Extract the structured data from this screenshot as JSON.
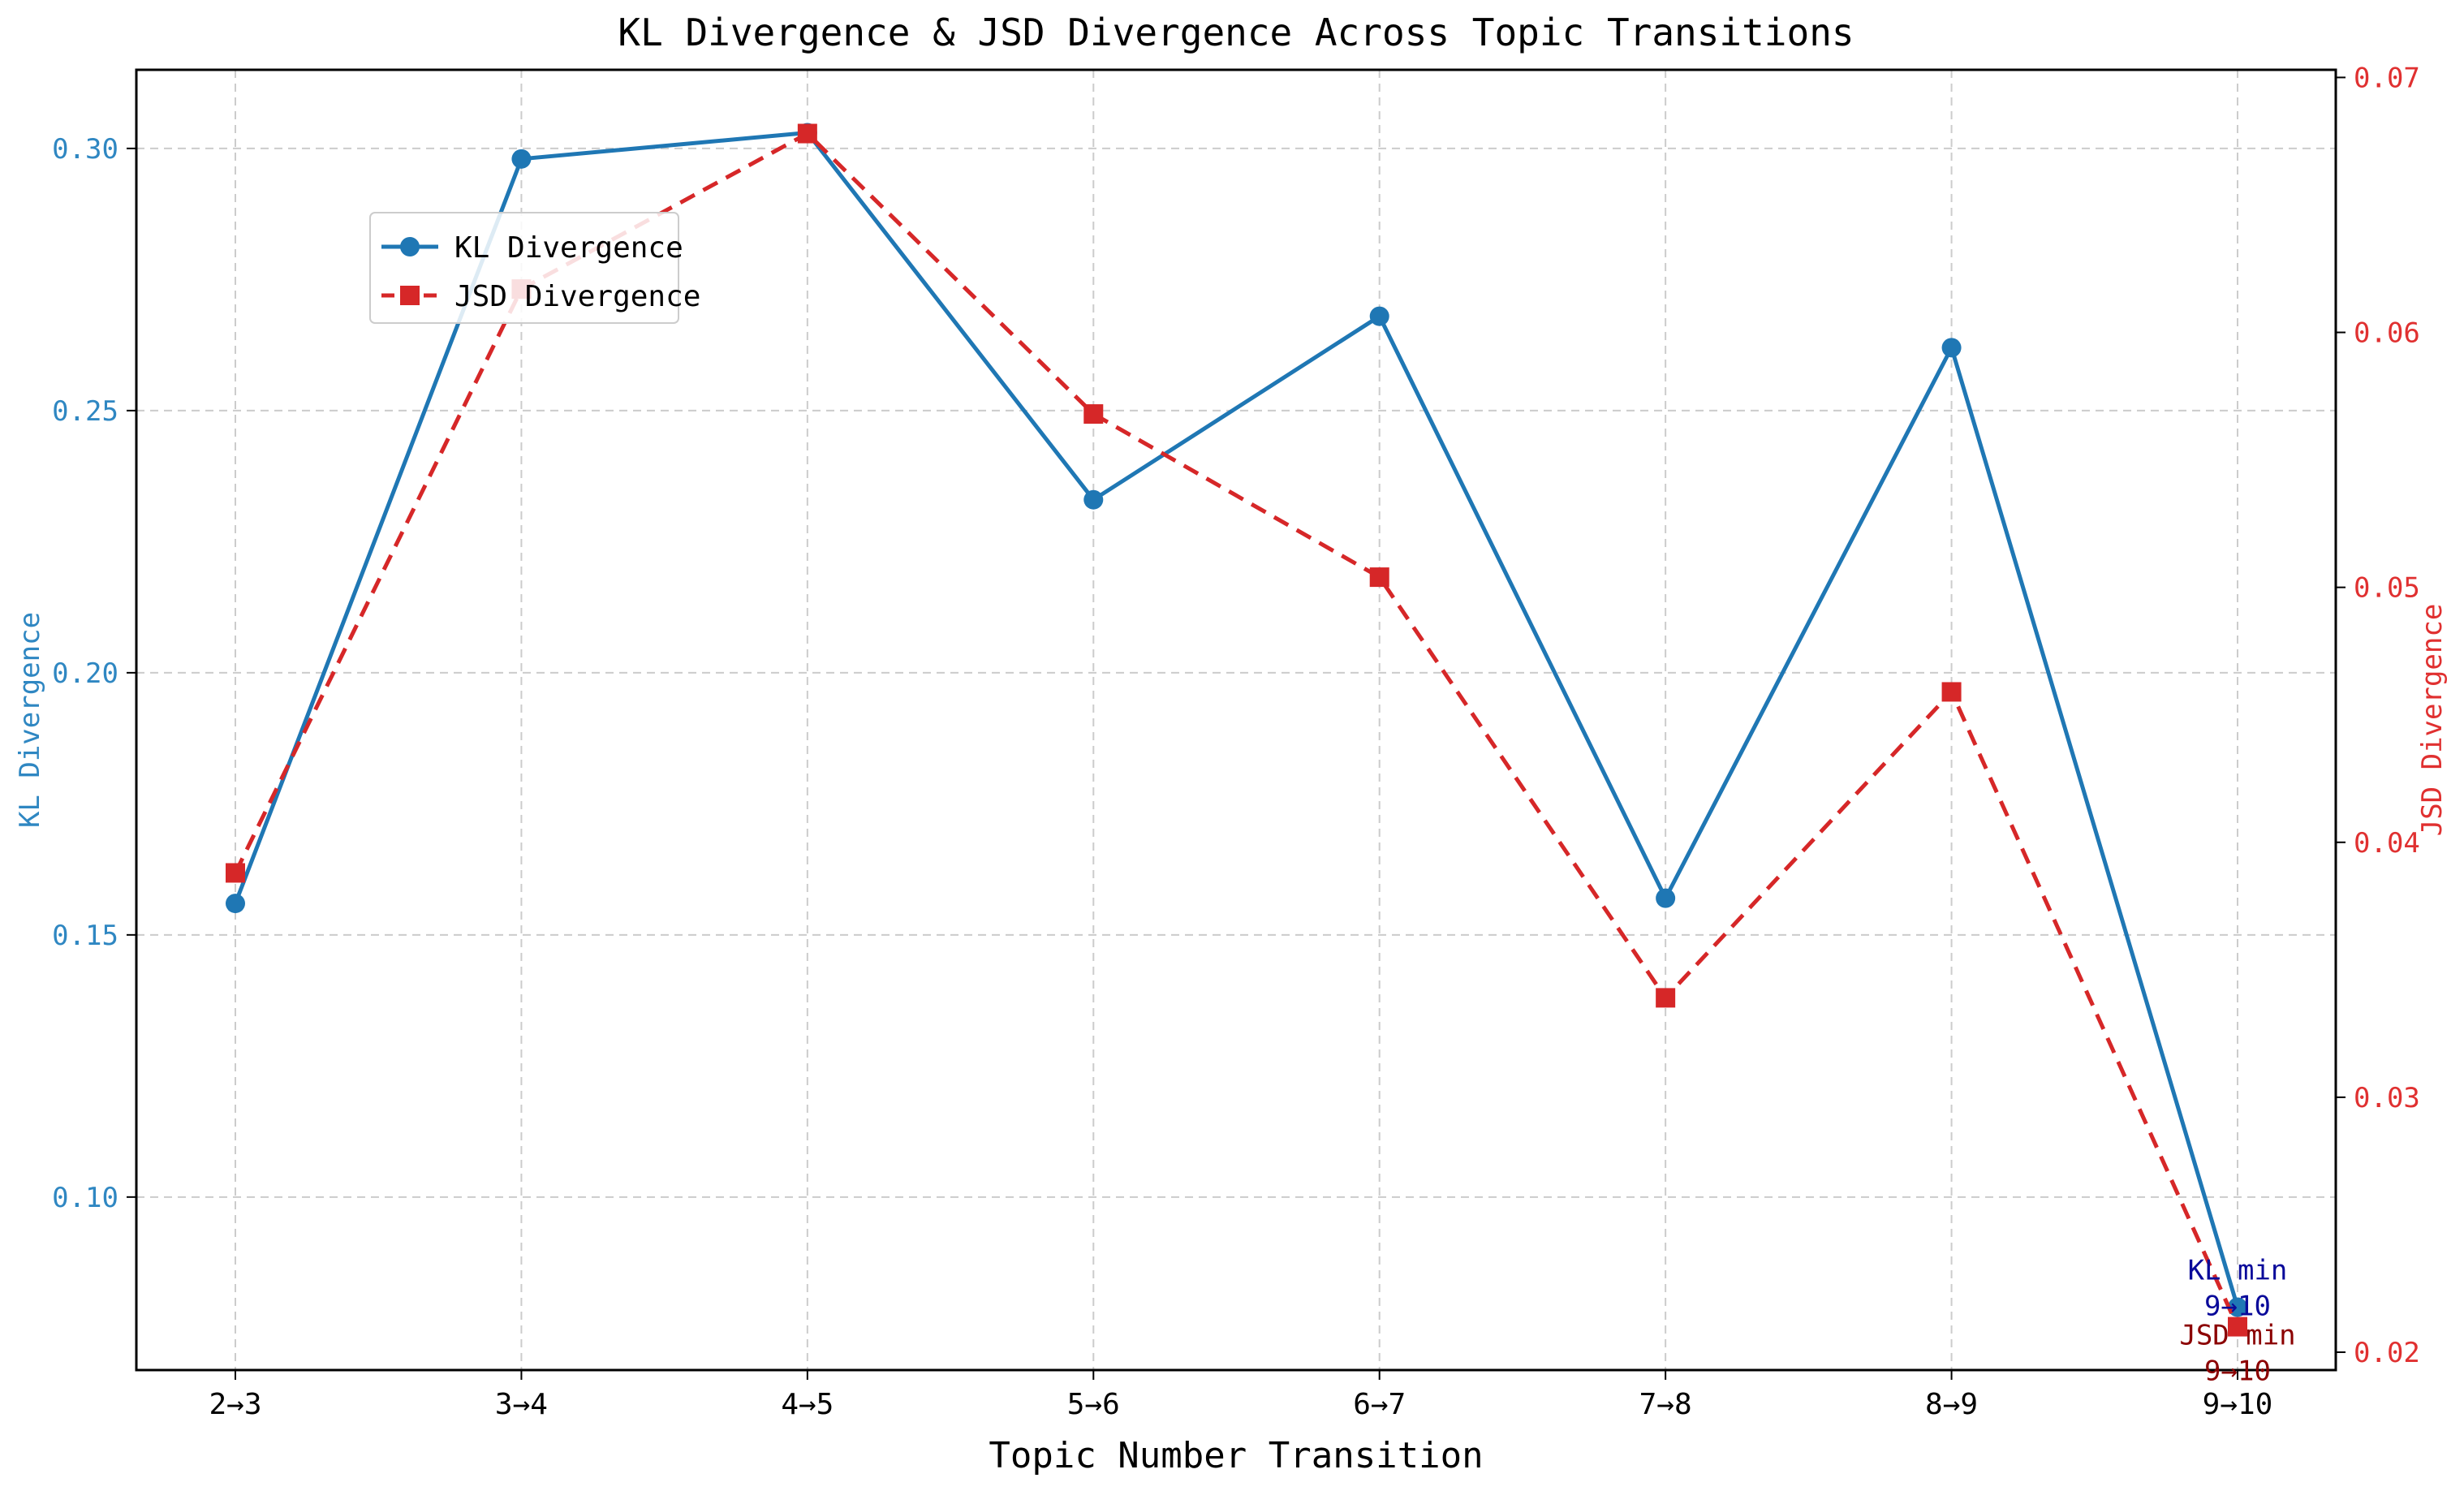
{
  "chart_data": {
    "type": "line",
    "title": "KL Divergence & JSD Divergence Across Topic Transitions",
    "xlabel": "Topic Number Transition",
    "ylabel_left": "KL Divergence",
    "ylabel_right": "JSD Divergence",
    "categories": [
      "2→3",
      "3→4",
      "4→5",
      "5→6",
      "6→7",
      "7→8",
      "8→9",
      "9→10"
    ],
    "ylim_left": [
      0.067,
      0.315
    ],
    "ylim_right": [
      0.0193,
      0.0703
    ],
    "yticks_left": [
      "0.10",
      "0.15",
      "0.20",
      "0.25",
      "0.30"
    ],
    "yticks_left_values": [
      0.1,
      0.15,
      0.2,
      0.25,
      0.3
    ],
    "yticks_right": [
      "0.02",
      "0.03",
      "0.04",
      "0.05",
      "0.06",
      "0.07"
    ],
    "yticks_right_values": [
      0.02,
      0.03,
      0.04,
      0.05,
      0.06,
      0.07
    ],
    "grid": true,
    "legend_position": "upper-left",
    "series": [
      {
        "name": "KL Divergence",
        "axis": "left",
        "color": "#1f77b4",
        "marker": "circle",
        "line_style": "solid",
        "values": [
          0.156,
          0.298,
          0.303,
          0.233,
          0.268,
          0.157,
          0.262,
          0.079
        ]
      },
      {
        "name": "JSD Divergence",
        "axis": "right",
        "color": "#d62728",
        "marker": "square",
        "line_style": "dashed",
        "values": [
          0.0388,
          0.0617,
          0.0678,
          0.0568,
          0.0504,
          0.0339,
          0.0459,
          0.021
        ]
      }
    ],
    "annotations": [
      {
        "series": "KL Divergence",
        "lines": [
          "KL min",
          "9→10"
        ],
        "color": "#0a0a9a"
      },
      {
        "series": "JSD Divergence",
        "lines": [
          "JSD min",
          "9→10"
        ],
        "color": "#8b0000"
      }
    ],
    "colors": {
      "left_axis_text": "#2f87c2",
      "right_axis_text": "#e03030",
      "grid": "#cccccc"
    }
  }
}
